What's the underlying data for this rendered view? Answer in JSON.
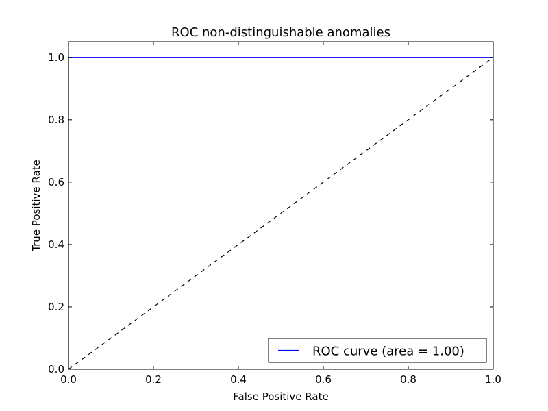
{
  "chart_data": {
    "type": "line",
    "title": "ROC non-distinguishable anomalies",
    "xlabel": "False Positive Rate",
    "ylabel": "True Positive Rate",
    "xlim": [
      0.0,
      1.0
    ],
    "ylim": [
      0.0,
      1.05
    ],
    "xticks": [
      "0.0",
      "0.2",
      "0.4",
      "0.6",
      "0.8",
      "1.0"
    ],
    "yticks": [
      "0.0",
      "0.2",
      "0.4",
      "0.6",
      "0.8",
      "1.0"
    ],
    "grid": false,
    "legend_position": "lower-right",
    "series": [
      {
        "name": "ROC curve (area = 1.00)",
        "color": "#0000ff",
        "style": "solid",
        "x": [
          0.0,
          0.0,
          1.0
        ],
        "y": [
          0.0,
          1.0,
          1.0
        ]
      },
      {
        "color": "#000000",
        "style": "dashed",
        "x": [
          0.0,
          1.0
        ],
        "y": [
          0.0,
          1.0
        ]
      }
    ]
  }
}
